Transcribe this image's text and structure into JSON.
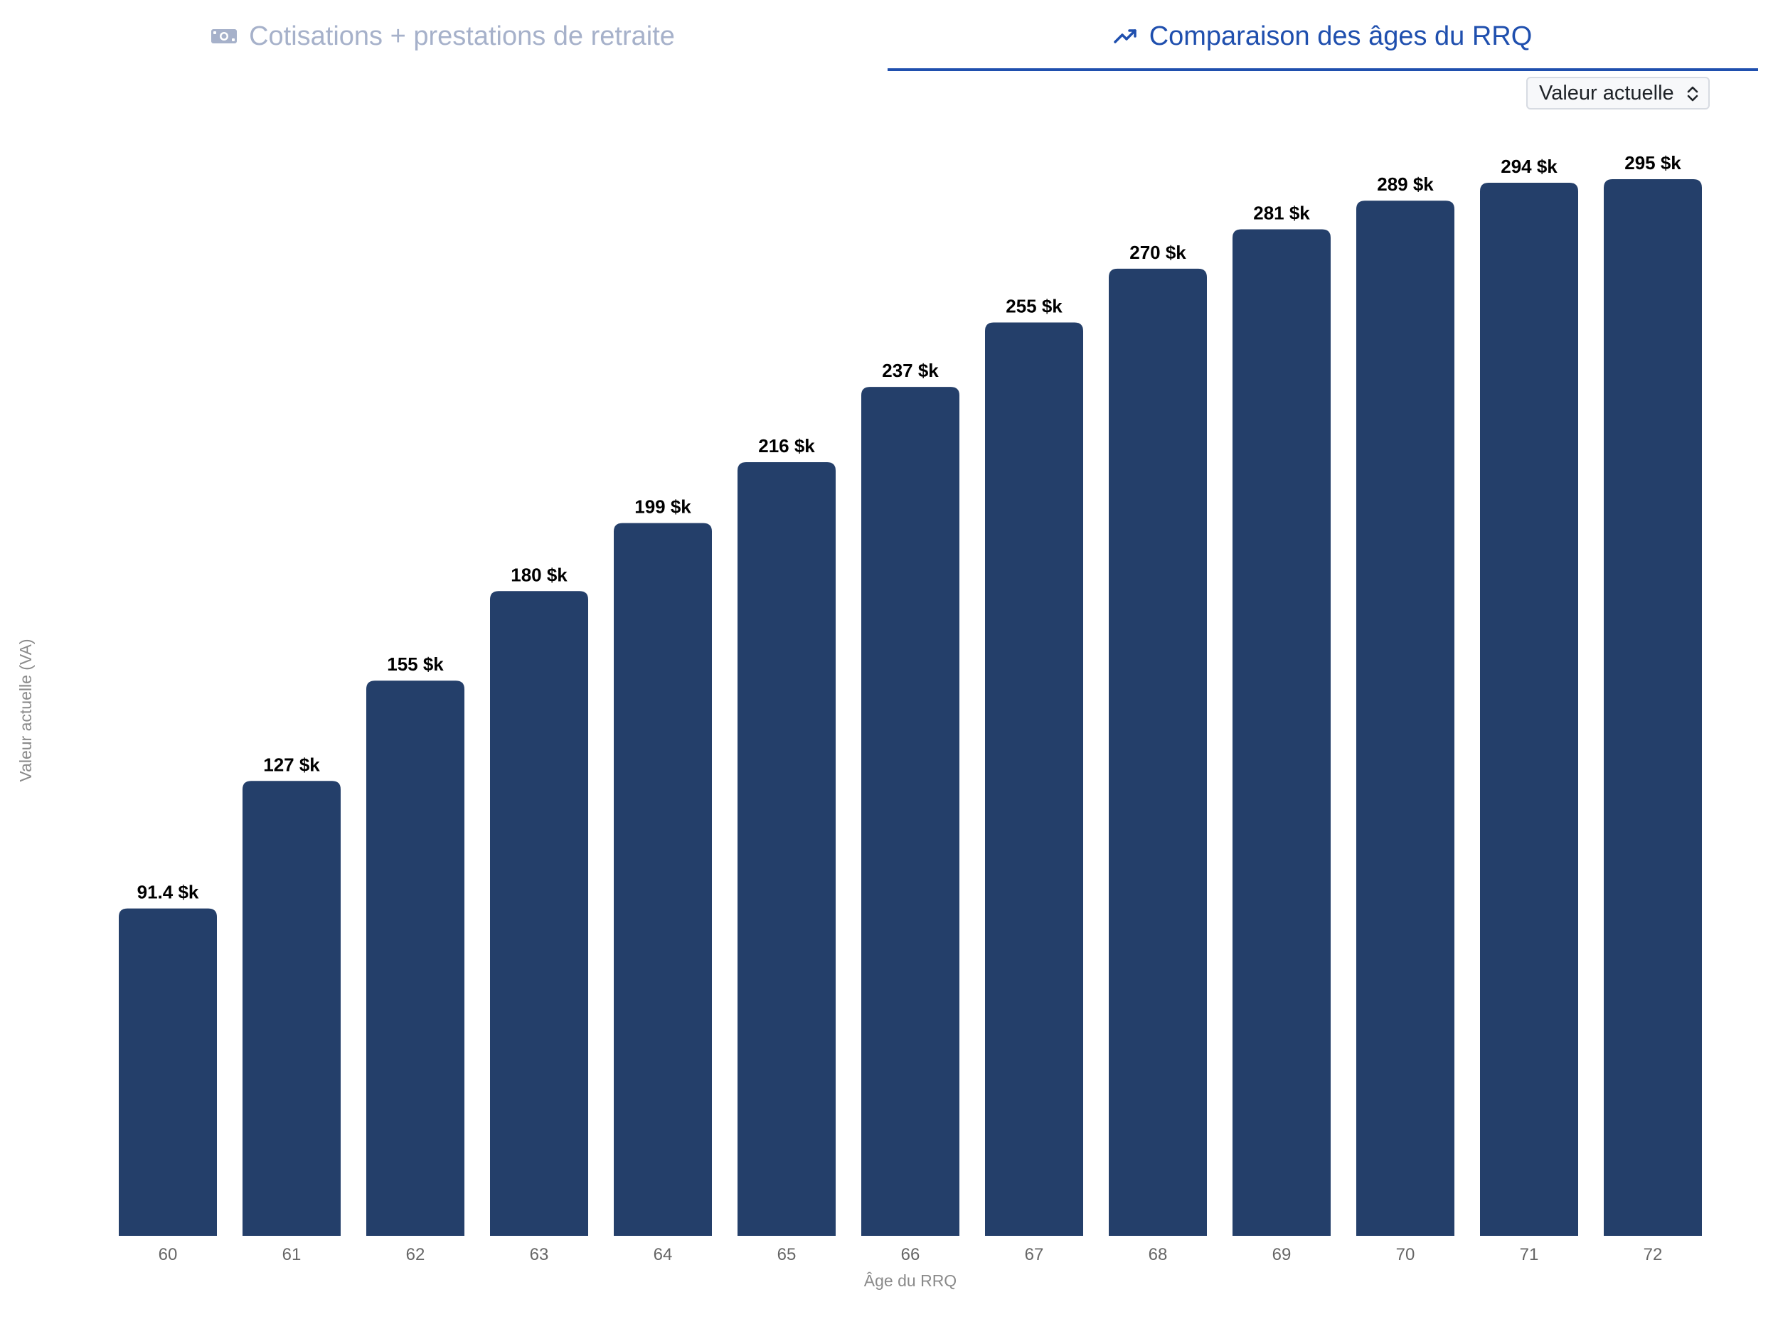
{
  "tabs": [
    {
      "label": "Cotisations + prestations de retraite",
      "icon": "money-icon",
      "active": false
    },
    {
      "label": "Comparaison des âges du RRQ",
      "icon": "trending-up-icon",
      "active": true
    }
  ],
  "colors": {
    "bar": "#243f6a",
    "active_tab": "#1f4fae",
    "inactive_tab": "#a6b1ca"
  },
  "view_select": {
    "value": "Valeur actuelle",
    "icon": "chevron-up-down-icon"
  },
  "chart_data": {
    "type": "bar",
    "categories": [
      "60",
      "61",
      "62",
      "63",
      "64",
      "65",
      "66",
      "67",
      "68",
      "69",
      "70",
      "71",
      "72"
    ],
    "values": [
      91.4,
      127,
      155,
      180,
      199,
      216,
      237,
      255,
      270,
      281,
      289,
      294,
      295
    ],
    "data_labels": [
      "91.4 $k",
      "127 $k",
      "155 $k",
      "180 $k",
      "199 $k",
      "216 $k",
      "237 $k",
      "255 $k",
      "270 $k",
      "281 $k",
      "289 $k",
      "294 $k",
      "295 $k"
    ],
    "unit": "$k",
    "xlabel": "Âge du RRQ",
    "ylabel": "Valeur actuelle (VA)",
    "ylim": [
      0,
      295
    ],
    "grid": false,
    "legend": false
  }
}
